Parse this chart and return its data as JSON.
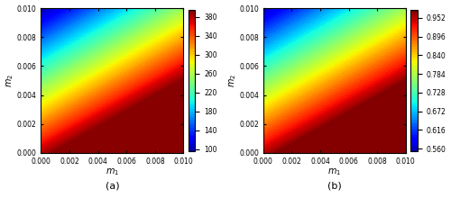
{
  "m1_range": [
    0.0,
    0.01
  ],
  "m2_range": [
    0.0,
    0.01
  ],
  "m_ticks": [
    0.0,
    0.002,
    0.004,
    0.006,
    0.008,
    0.01
  ],
  "subplot_a": {
    "colorbar_ticks": [
      100,
      140,
      180,
      220,
      260,
      300,
      340,
      380
    ],
    "clim": [
      85,
      395
    ],
    "xlabel": "$m_1$",
    "ylabel": "$m_2$",
    "label": "(a)"
  },
  "subplot_b": {
    "colorbar_ticks": [
      0.56,
      0.616,
      0.672,
      0.728,
      0.784,
      0.84,
      0.896,
      0.952
    ],
    "clim": [
      0.535,
      0.975
    ],
    "xlabel": "$m_1$",
    "ylabel": "$m_2$",
    "label": "(b)"
  },
  "cmap": "jet",
  "figsize": [
    5.0,
    2.2
  ],
  "dpi": 100,
  "title_fontsize": 8,
  "tick_fontsize": 5.5,
  "label_fontsize": 7
}
